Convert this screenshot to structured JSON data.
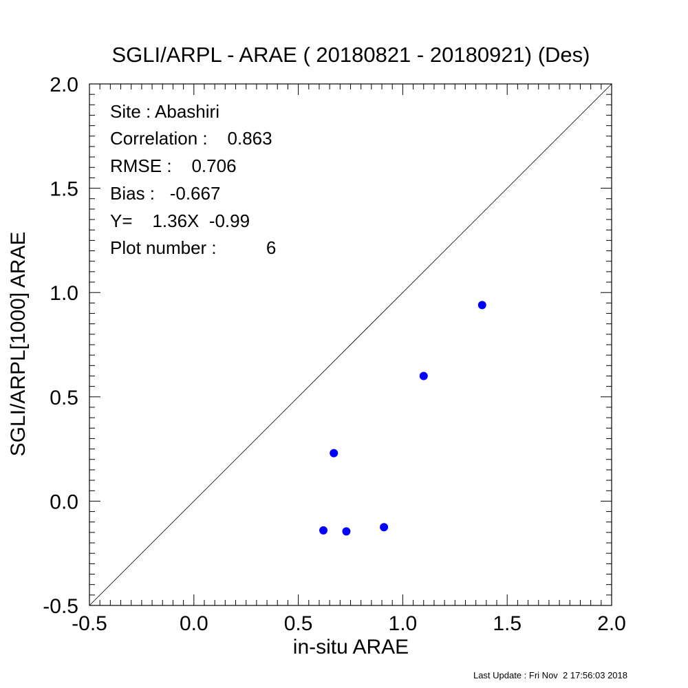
{
  "chart_data": {
    "type": "scatter",
    "title": "SGLI/ARPL - ARAE ( 20180821 - 20180921) (Des)",
    "xlabel": "in-situ ARAE",
    "ylabel": "SGLI/ARPL[1000]    ARAE",
    "xlim": [
      -0.5,
      2.0
    ],
    "ylim": [
      -0.5,
      2.0
    ],
    "xticks": [
      -0.5,
      0.0,
      0.5,
      1.0,
      1.5,
      2.0
    ],
    "yticks": [
      -0.5,
      0.0,
      0.5,
      1.0,
      1.5,
      2.0
    ],
    "xtick_labels": [
      "-0.5",
      "0.0",
      "0.5",
      "1.0",
      "1.5",
      "2.0"
    ],
    "ytick_labels": [
      "-0.5",
      "0.0",
      "0.5",
      "1.0",
      "1.5",
      "2.0"
    ],
    "grid": false,
    "reference_line": "1:1",
    "point_color": "#0000ff",
    "points": [
      {
        "x": 0.62,
        "y": -0.14
      },
      {
        "x": 0.67,
        "y": 0.23
      },
      {
        "x": 0.73,
        "y": -0.145
      },
      {
        "x": 0.91,
        "y": -0.125
      },
      {
        "x": 1.1,
        "y": 0.6
      },
      {
        "x": 1.38,
        "y": 0.94
      }
    ],
    "stats": {
      "site": "Site : Abashiri",
      "correlation": "Correlation :    0.863",
      "rmse": "RMSE :    0.706",
      "bias": "Bias :   -0.667",
      "fit": "Y=    1.36X  -0.99",
      "plot_number": "Plot number :          6"
    }
  },
  "footer": {
    "last_update": "Last Update : Fri Nov  2 17:56:03 2018"
  }
}
